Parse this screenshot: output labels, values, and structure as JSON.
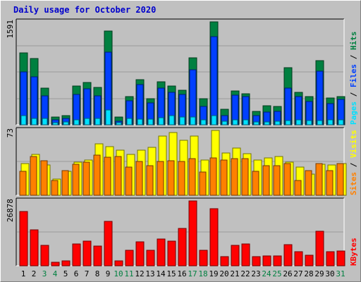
{
  "chart_data": {
    "title": "Daily usage for October 2020",
    "type": "bar",
    "categories": [
      "1",
      "2",
      "3",
      "4",
      "5",
      "6",
      "7",
      "8",
      "9",
      "10",
      "11",
      "12",
      "13",
      "14",
      "15",
      "16",
      "17",
      "18",
      "19",
      "20",
      "21",
      "22",
      "23",
      "24",
      "25",
      "26",
      "27",
      "28",
      "29",
      "30",
      "31"
    ],
    "weekend_days": [
      "3",
      "4",
      "10",
      "11",
      "17",
      "18",
      "24",
      "25",
      "31"
    ],
    "colors": {
      "hits": "#008040",
      "files": "#0040ff",
      "pages": "#00e0ff",
      "visits": "#ffff00",
      "sites": "#ff8000",
      "kbytes": "#ff0000",
      "weekday_label": "#000000",
      "weekend_label": "#008040",
      "title": "#0000cc"
    },
    "panels": [
      {
        "name": "hits-files-pages",
        "ymax_label": "1591",
        "ymax": 1591,
        "legend": [
          {
            "label": "Pages",
            "color": "#00e0ff"
          },
          {
            "label": "Files",
            "color": "#0040ff"
          },
          {
            "label": "Hits",
            "color": "#008040"
          }
        ],
        "series": [
          {
            "name": "Hits",
            "values": [
              1109,
              1020,
              564,
              115,
              147,
              603,
              652,
              580,
              1454,
              123,
              434,
              696,
              400,
              661,
              595,
              535,
              1031,
              405,
              1591,
              240,
              527,
              482,
              210,
              290,
              282,
              887,
              501,
              433,
              987,
              416,
              441
            ]
          },
          {
            "name": "Files",
            "values": [
              814,
              743,
              445,
              72,
              103,
              470,
              556,
              451,
              1120,
              54,
              366,
              621,
              335,
              564,
              497,
              468,
              845,
              287,
              1362,
              142,
              456,
              441,
              138,
              200,
              208,
              569,
              434,
              356,
              827,
              330,
              388
            ]
          },
          {
            "name": "Pages",
            "values": [
              140,
              103,
              101,
              30,
              40,
              73,
              93,
              93,
              226,
              30,
              96,
              82,
              84,
              114,
              137,
              115,
              125,
              81,
              143,
              51,
              71,
              75,
              40,
              47,
              55,
              61,
              75,
              62,
              64,
              72,
              72
            ]
          }
        ]
      },
      {
        "name": "visits-sites",
        "ymax_label": "73",
        "ymax": 73,
        "legend": [
          {
            "label": "Sites",
            "color": "#ff8000"
          },
          {
            "label": "Visits",
            "color": "#ffff00"
          }
        ],
        "series": [
          {
            "name": "Visits",
            "values": [
              36,
              46,
              34,
              18,
              27,
              37,
              40,
              58,
              55,
              51,
              46,
              51,
              54,
              67,
              71,
              62,
              67,
              40,
              73,
              48,
              53,
              47,
              40,
              42,
              44,
              37,
              32,
              24,
              35,
              34,
              36
            ]
          },
          {
            "name": "Sites",
            "values": [
              27,
              44,
              39,
              17,
              28,
              35,
              37,
              45,
              43,
              44,
              32,
              38,
              33,
              38,
              39,
              38,
              41,
              26,
              42,
              40,
              41,
              41,
              27,
              33,
              33,
              36,
              17,
              28,
              36,
              28,
              36
            ]
          }
        ]
      },
      {
        "name": "kbytes",
        "ymax_label": "26878",
        "ymax": 26878,
        "legend": [
          {
            "label": "KBytes",
            "color": "#ff0000"
          }
        ],
        "series": [
          {
            "name": "KBytes",
            "values": [
              22400,
              14800,
              8600,
              1500,
              1900,
              9100,
              10100,
              8300,
              18300,
              1900,
              6400,
              9800,
              6400,
              11000,
              10100,
              15600,
              26878,
              6400,
              23600,
              3700,
              8500,
              9100,
              3700,
              4000,
              4000,
              8900,
              5700,
              4300,
              14200,
              5700,
              6000
            ]
          }
        ]
      }
    ]
  }
}
